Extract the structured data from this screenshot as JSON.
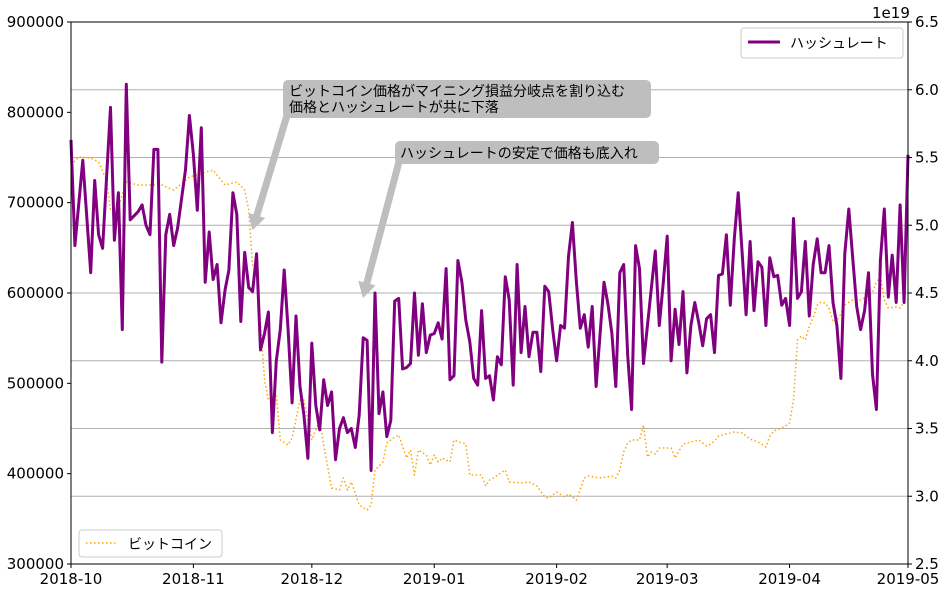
{
  "chart_data": {
    "type": "line",
    "x_start_date": "2018-10-01",
    "x_unit": "days since 2018-10-01",
    "xlim": [
      "2018-10-01",
      "2019-05-01"
    ],
    "x_tick_labels": [
      "2018-10",
      "2018-11",
      "2018-12",
      "2019-01",
      "2019-02",
      "2019-03",
      "2019-04",
      "2019-05"
    ],
    "x_tick_days": [
      0,
      31,
      61,
      92,
      123,
      151,
      182,
      212
    ],
    "left_axis": {
      "ylim": [
        300000,
        900000
      ],
      "ticks": [
        300000,
        400000,
        500000,
        600000,
        700000,
        800000,
        900000
      ],
      "tick_labels": [
        "300000",
        "400000",
        "500000",
        "600000",
        "700000",
        "800000",
        "900000"
      ]
    },
    "right_axis": {
      "ylim": [
        2.5,
        6.5
      ],
      "ticks": [
        2.5,
        3.0,
        3.5,
        4.0,
        4.5,
        5.0,
        5.5,
        6.0,
        6.5
      ],
      "tick_labels": [
        "2.5",
        "3.0",
        "3.5",
        "4.0",
        "4.5",
        "5.0",
        "5.5",
        "6.0",
        "6.5"
      ],
      "offset_label": "1e19",
      "grid": true
    },
    "series": [
      {
        "name": "ハッシュレート",
        "axis": "right",
        "color": "#800080",
        "style": "solid",
        "legend": "top-right",
        "x": [
          0,
          1,
          3,
          5,
          6,
          7,
          8,
          10,
          11,
          12,
          13,
          14,
          15,
          17,
          18,
          19,
          20,
          21,
          22,
          23,
          24,
          25,
          26,
          27,
          29,
          30,
          31,
          32,
          33,
          34,
          35,
          36,
          37,
          38,
          39,
          40,
          41,
          42,
          43,
          44,
          45,
          46,
          47,
          48,
          49,
          50,
          51,
          52,
          53,
          54,
          55,
          56,
          57,
          58,
          59,
          60,
          61,
          62,
          63,
          64,
          65,
          66,
          67,
          68,
          69,
          70,
          71,
          72,
          73,
          74,
          75,
          76,
          77,
          78,
          79,
          80,
          81,
          82,
          83,
          84,
          85,
          86,
          87,
          88,
          89,
          90,
          91,
          92,
          93,
          94,
          95,
          96,
          97,
          98,
          99,
          100,
          101,
          102,
          103,
          104,
          105,
          106,
          107,
          108,
          109,
          110,
          111,
          112,
          113,
          114,
          115,
          116,
          117,
          118,
          119,
          120,
          121,
          122,
          123,
          124,
          125,
          126,
          127,
          128,
          129,
          130,
          131,
          132,
          133,
          135,
          136,
          137,
          138,
          139,
          140,
          141,
          142,
          143,
          144,
          145,
          147,
          148,
          149,
          150,
          151,
          152,
          153,
          154,
          155,
          156,
          157,
          158,
          159,
          160,
          161,
          162,
          163,
          164,
          165,
          166,
          167,
          168,
          169,
          170,
          171,
          172,
          173,
          174,
          175,
          176,
          177,
          178,
          179,
          180,
          181,
          182,
          183,
          184,
          185,
          186,
          187,
          188,
          189,
          190,
          191,
          192,
          193,
          194,
          195,
          196,
          197,
          198,
          199,
          200,
          201,
          202,
          203,
          204,
          205,
          206,
          207,
          208,
          209,
          210,
          211,
          212
        ],
        "values": [
          5.63,
          4.85,
          5.48,
          4.65,
          5.33,
          4.93,
          4.83,
          5.87,
          4.89,
          5.24,
          4.23,
          6.04,
          5.04,
          5.1,
          5.15,
          5.0,
          4.93,
          5.56,
          5.56,
          3.99,
          4.93,
          5.08,
          4.85,
          4.98,
          5.41,
          5.81,
          5.52,
          5.11,
          5.72,
          4.58,
          4.95,
          4.6,
          4.71,
          4.28,
          4.52,
          4.67,
          5.24,
          5.08,
          4.29,
          4.8,
          4.54,
          4.51,
          4.79,
          4.08,
          4.2,
          4.36,
          3.47,
          4.0,
          4.23,
          4.67,
          4.23,
          3.69,
          4.33,
          3.81,
          3.6,
          3.28,
          4.13,
          3.67,
          3.49,
          3.86,
          3.67,
          3.77,
          3.27,
          3.5,
          3.58,
          3.47,
          3.5,
          3.36,
          3.6,
          4.17,
          4.15,
          3.19,
          4.5,
          3.61,
          3.77,
          3.44,
          3.56,
          4.44,
          4.46,
          3.94,
          3.95,
          3.98,
          4.5,
          4.04,
          4.42,
          4.06,
          4.19,
          4.2,
          4.28,
          4.16,
          4.68,
          3.86,
          3.89,
          4.74,
          4.58,
          4.3,
          4.14,
          3.87,
          3.82,
          4.37,
          3.87,
          3.89,
          3.71,
          4.03,
          3.97,
          4.62,
          4.45,
          3.82,
          4.71,
          4.06,
          4.4,
          4.03,
          4.21,
          4.21,
          3.92,
          4.55,
          4.51,
          4.23,
          4.0,
          4.26,
          4.24,
          4.77,
          5.02,
          4.58,
          4.24,
          4.34,
          4.1,
          4.4,
          3.81,
          4.58,
          4.42,
          4.2,
          3.81,
          4.65,
          4.71,
          4.04,
          3.64,
          4.85,
          4.68,
          3.98,
          4.54,
          4.81,
          4.26,
          4.57,
          4.92,
          4.0,
          4.38,
          4.12,
          4.51,
          3.91,
          4.26,
          4.43,
          4.28,
          4.11,
          4.31,
          4.34,
          4.06,
          4.63,
          4.64,
          4.93,
          4.41,
          4.9,
          5.24,
          4.79,
          4.34,
          4.88,
          4.37,
          4.73,
          4.69,
          4.26,
          4.76,
          4.62,
          4.63,
          4.41,
          4.46,
          4.26,
          5.05,
          4.46,
          4.51,
          4.88,
          4.33,
          4.71,
          4.9,
          4.65,
          4.65,
          4.85,
          4.43,
          4.26,
          3.87,
          4.79,
          5.12,
          4.76,
          4.4,
          4.23,
          4.37,
          4.65,
          3.9,
          3.64,
          4.74,
          5.12,
          4.47,
          4.78,
          4.43,
          5.15,
          4.43,
          5.52
        ]
      },
      {
        "name": "ビットコイン",
        "axis": "left",
        "color": "#ffa500",
        "style": "dotted",
        "legend": "bottom-left",
        "x": [
          0,
          2,
          5,
          7,
          9,
          10,
          12,
          14,
          17,
          23,
          26,
          30,
          36,
          39,
          42,
          44,
          45,
          46,
          47,
          49,
          50,
          52,
          53,
          55,
          56,
          58,
          59,
          61,
          63,
          64,
          66,
          68,
          69,
          70,
          71,
          73,
          75,
          76,
          77,
          79,
          80,
          81,
          82,
          83,
          85,
          86,
          87,
          88,
          90,
          91,
          92,
          93,
          94,
          95,
          96,
          97,
          99,
          100,
          101,
          103,
          104,
          105,
          106,
          107,
          109,
          110,
          111,
          114,
          116,
          118,
          120,
          121,
          123,
          125,
          126,
          128,
          130,
          131,
          134,
          137,
          138,
          139,
          140,
          141,
          142,
          144,
          145,
          146,
          147,
          148,
          149,
          152,
          153,
          155,
          157,
          159,
          161,
          162,
          163,
          164,
          166,
          168,
          170,
          172,
          174,
          176,
          177,
          178,
          180,
          181,
          182,
          183,
          184,
          185,
          186,
          187,
          188,
          189,
          190,
          191,
          192,
          193,
          194,
          195,
          196,
          198,
          199,
          200,
          201,
          202,
          203,
          204,
          205,
          206,
          207,
          209,
          210,
          211,
          212
        ],
        "values": [
          741700,
          750600,
          749400,
          745000,
          725100,
          691900,
          695200,
          722900,
          719600,
          719600,
          714000,
          728400,
          736200,
          719600,
          722900,
          714000,
          691900,
          631000,
          627700,
          503700,
          481600,
          487100,
          437300,
          431700,
          439500,
          481600,
          481600,
          437300,
          459400,
          431700,
          384100,
          381900,
          395200,
          381900,
          390800,
          365300,
          359800,
          365300,
          404100,
          412900,
          434000,
          437300,
          440600,
          442800,
          417300,
          426200,
          398500,
          426200,
          420700,
          409600,
          420700,
          412900,
          417300,
          415100,
          412900,
          437300,
          434000,
          433000,
          398500,
          398500,
          398500,
          386400,
          392900,
          395200,
          401000,
          404100,
          390800,
          389700,
          390800,
          386400,
          374200,
          373100,
          379700,
          374200,
          377500,
          370900,
          395200,
          397400,
          395200,
          397400,
          395200,
          404100,
          424000,
          434000,
          437300,
          437300,
          453900,
          418500,
          424000,
          421800,
          428400,
          428400,
          417300,
          432800,
          435100,
          437300,
          430600,
          432800,
          436200,
          441700,
          443900,
          446100,
          445000,
          438400,
          435100,
          429500,
          441700,
          447200,
          450600,
          452800,
          456100,
          481600,
          548000,
          552400,
          548000,
          563500,
          572300,
          586700,
          590000,
          588900,
          583400,
          567900,
          570100,
          576800,
          586700,
          592300,
          592300,
          592300,
          594500,
          596700,
          601100,
          612200,
          617700,
          592300,
          583400,
          584500,
          583400,
          590000,
          592300
        ]
      }
    ],
    "annotations": [
      {
        "line1": "ビットコイン価格がマイニング損益分岐点を割り込む",
        "line2": "価格とハッシュレートが共に下落",
        "arrow_to_day": 46,
        "arrow_to_value_right": 4.97
      },
      {
        "line1": "ハッシュレートの安定で価格も底入れ",
        "arrow_to_day": 74,
        "arrow_to_value_right": 4.47
      }
    ]
  }
}
